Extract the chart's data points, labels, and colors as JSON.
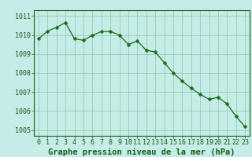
{
  "x": [
    0,
    1,
    2,
    3,
    4,
    5,
    6,
    7,
    8,
    9,
    10,
    11,
    12,
    13,
    14,
    15,
    16,
    17,
    18,
    19,
    20,
    21,
    22,
    23
  ],
  "y": [
    1009.8,
    1010.2,
    1010.4,
    1010.65,
    1009.8,
    1009.72,
    1009.98,
    1010.18,
    1010.18,
    1010.0,
    1009.5,
    1009.68,
    1009.2,
    1009.1,
    1008.55,
    1008.0,
    1007.58,
    1007.2,
    1006.88,
    1006.62,
    1006.72,
    1006.38,
    1005.72,
    1005.18
  ],
  "line_color": "#1a6b1a",
  "marker_color": "#1a6b1a",
  "bg_color": "#c5ece6",
  "grid_color_major": "#7abfa0",
  "grid_color_minor": "#a8d8c8",
  "title": "Graphe pression niveau de la mer (hPa)",
  "ylim": [
    1004.7,
    1011.3
  ],
  "yticks": [
    1005,
    1006,
    1007,
    1008,
    1009,
    1010,
    1011
  ],
  "xticks": [
    0,
    1,
    2,
    3,
    4,
    5,
    6,
    7,
    8,
    9,
    10,
    11,
    12,
    13,
    14,
    15,
    16,
    17,
    18,
    19,
    20,
    21,
    22,
    23
  ],
  "title_fontsize": 7.5,
  "tick_fontsize": 6,
  "title_color": "#1a5c1a",
  "tick_color": "#1a5c1a",
  "marker_size": 2.5,
  "line_width": 0.9
}
